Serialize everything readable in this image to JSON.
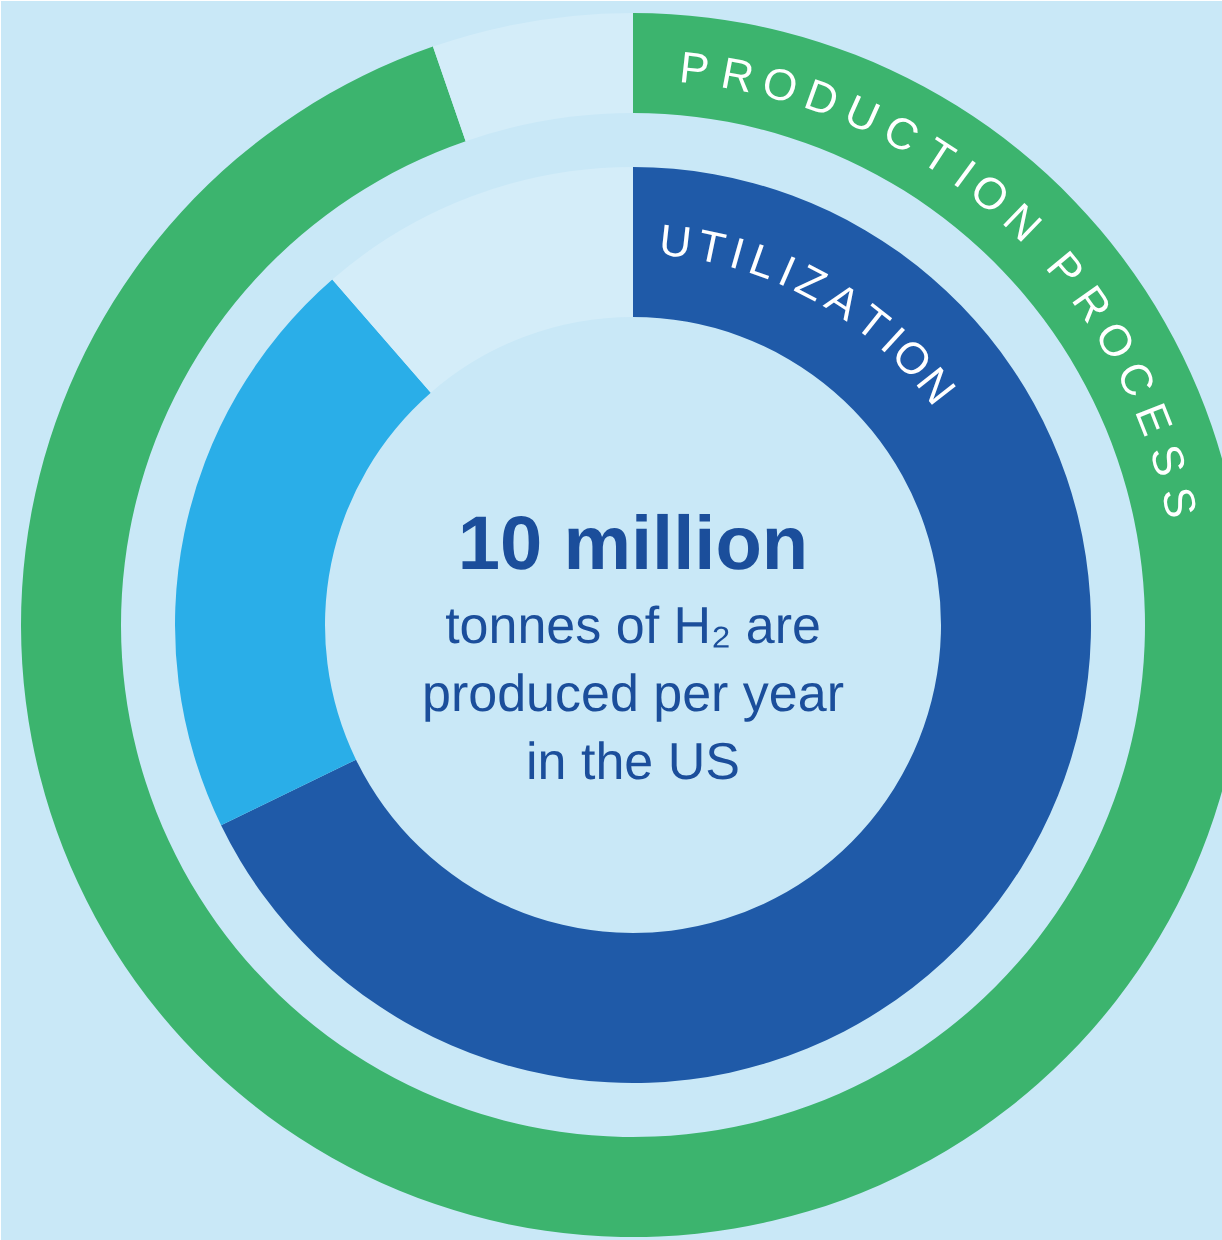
{
  "chart_data": {
    "type": "donut",
    "title": "10 million",
    "subtitle": "tonnes of H₂ are produced per year in the US",
    "legend": false,
    "series": [
      {
        "name": "PRODUCTION PROCESS",
        "values": [
          94.7,
          5.3
        ],
        "colors": [
          "#3cb46e",
          "#d4edf9"
        ]
      },
      {
        "name": "UTILIZATION",
        "values": [
          67.8,
          20.8,
          11.4
        ],
        "colors": [
          "#1f5aa8",
          "#2aaee8",
          "#d4edf9"
        ]
      }
    ]
  }
}
